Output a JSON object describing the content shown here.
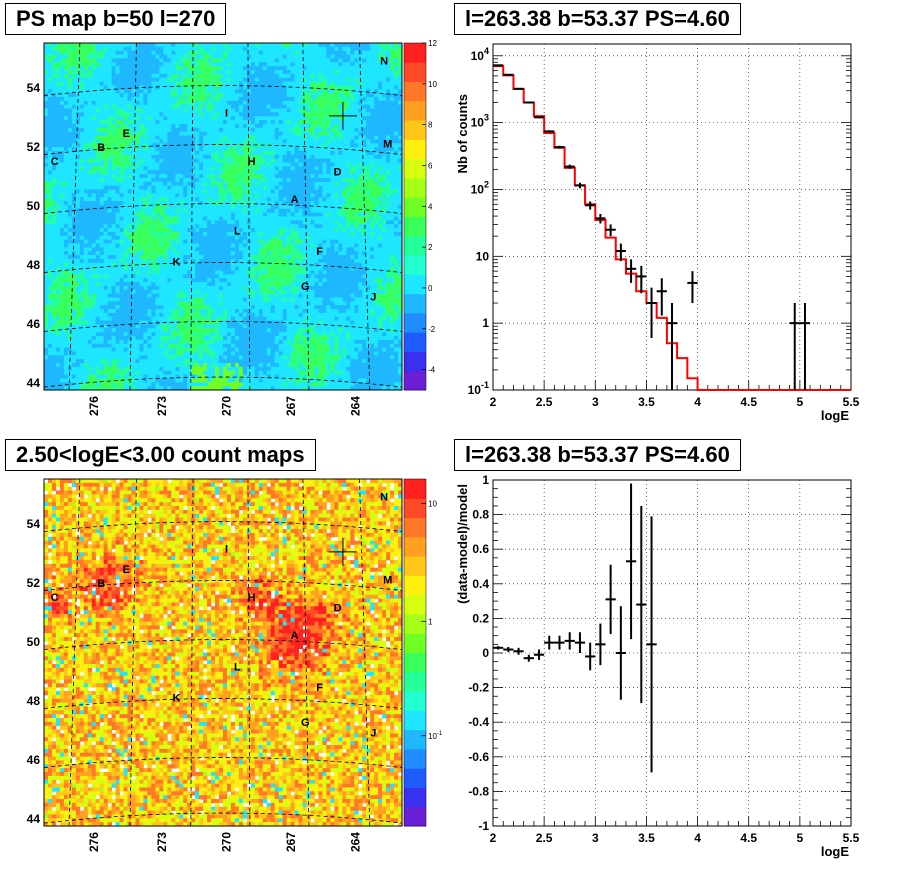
{
  "panels": {
    "ps_map": {
      "title": "PS map b=50 l=270"
    },
    "spectrum": {
      "title": "l=263.38 b=53.37 PS=4.60"
    },
    "count_map": {
      "title": "2.50<logE<3.00 count maps"
    },
    "residual": {
      "title": "l=263.38 b=53.37 PS=4.60"
    }
  },
  "colors": {
    "model_line": "#ff0000",
    "data_points": "#000000",
    "grid": "#000000"
  },
  "chart_data": [
    {
      "type": "heatmap",
      "title": "PS map b=50 l=270",
      "x_ticks": [
        "276",
        "273",
        "270",
        "267",
        "264"
      ],
      "y_ticks": [
        "54",
        "52",
        "50",
        "48",
        "46",
        "44"
      ],
      "palette_ticks": [
        "12",
        "10",
        "8",
        "6",
        "4",
        "2",
        "0",
        "-2",
        "-4"
      ],
      "palette_range": [
        -5,
        12
      ],
      "sources": [
        {
          "label": "N"
        },
        {
          "label": "I"
        },
        {
          "label": "E"
        },
        {
          "label": "M"
        },
        {
          "label": "B"
        },
        {
          "label": "C"
        },
        {
          "label": "H"
        },
        {
          "label": "D"
        },
        {
          "label": "A"
        },
        {
          "label": "L"
        },
        {
          "label": "F"
        },
        {
          "label": "K"
        },
        {
          "label": "G"
        },
        {
          "label": "J"
        }
      ]
    },
    {
      "type": "line",
      "title": "l=263.38 b=53.37 PS=4.60",
      "xlabel": "logE",
      "ylabel": "Nb of counts",
      "log_y": true,
      "grid": true,
      "xlim": [
        2,
        5.5
      ],
      "ylim": [
        0.1,
        15000
      ],
      "x_ticks": [
        "2",
        "2.5",
        "3",
        "3.5",
        "4",
        "4.5",
        "5",
        "5.5"
      ],
      "y_ticks": [
        "10^4",
        "10^3",
        "10^2",
        "10",
        "1",
        "10^-1"
      ],
      "series": [
        {
          "kind": "histogram",
          "bin_edges": [
            2.0,
            2.1,
            2.2,
            2.3,
            2.4,
            2.5,
            2.6,
            2.7,
            2.8,
            2.9,
            3.0,
            3.1,
            3.2,
            3.3,
            3.4,
            3.5,
            3.6,
            3.7,
            3.8,
            3.9,
            4.0,
            5.5
          ],
          "values": [
            7000,
            5100,
            3200,
            2000,
            1250,
            700,
            420,
            210,
            115,
            60,
            35,
            19,
            9,
            5.5,
            3,
            2,
            1.2,
            0.5,
            0.3,
            0.15,
            0.1
          ]
        },
        {
          "kind": "points",
          "x": [
            2.05,
            2.15,
            2.25,
            2.35,
            2.45,
            2.55,
            2.65,
            2.75,
            2.85,
            2.95,
            3.05,
            3.15,
            3.25,
            3.35,
            3.45,
            3.55,
            3.65,
            3.75,
            3.95,
            4.95,
            5.05
          ],
          "y": [
            7200,
            5200,
            3200,
            2000,
            1200,
            740,
            430,
            220,
            115,
            58,
            37,
            25,
            12,
            6.5,
            5,
            2,
            3,
            1,
            4,
            1,
            1
          ],
          "yerr": [
            85,
            72,
            57,
            45,
            35,
            27,
            21,
            15,
            11,
            8,
            6,
            5,
            3.5,
            2.5,
            2.2,
            1.4,
            1.7,
            1,
            2,
            1,
            1
          ]
        }
      ]
    },
    {
      "type": "heatmap",
      "title": "2.50<logE<3.00 count maps",
      "x_ticks": [
        "276",
        "273",
        "270",
        "267",
        "264"
      ],
      "y_ticks": [
        "54",
        "52",
        "50",
        "48",
        "46",
        "44"
      ],
      "palette_ticks": [
        "10",
        "1",
        "10^-1"
      ],
      "palette_log": true,
      "sources": [
        {
          "label": "N"
        },
        {
          "label": "I"
        },
        {
          "label": "E"
        },
        {
          "label": "M"
        },
        {
          "label": "B"
        },
        {
          "label": "C"
        },
        {
          "label": "H"
        },
        {
          "label": "D"
        },
        {
          "label": "A"
        },
        {
          "label": "L"
        },
        {
          "label": "F"
        },
        {
          "label": "K"
        },
        {
          "label": "G"
        },
        {
          "label": "J"
        }
      ]
    },
    {
      "type": "scatter",
      "title": "l=263.38 b=53.37 PS=4.60",
      "xlabel": "logE",
      "ylabel": "(data-model)/model",
      "grid": true,
      "xlim": [
        2,
        5.5
      ],
      "ylim": [
        -1,
        1
      ],
      "x_ticks": [
        "2",
        "2.5",
        "3",
        "3.5",
        "4",
        "4.5",
        "5",
        "5.5"
      ],
      "y_ticks": [
        "1",
        "0.8",
        "0.6",
        "0.4",
        "0.2",
        "0",
        "-0.2",
        "-0.4",
        "-0.6",
        "-0.8",
        "-1"
      ],
      "points": {
        "x": [
          2.05,
          2.15,
          2.25,
          2.35,
          2.45,
          2.55,
          2.65,
          2.75,
          2.85,
          2.95,
          3.05,
          3.15,
          3.25,
          3.35,
          3.45,
          3.55
        ],
        "y": [
          0.03,
          0.02,
          0.01,
          -0.03,
          -0.01,
          0.06,
          0.06,
          0.07,
          0.06,
          -0.02,
          0.05,
          0.31,
          0.0,
          0.53,
          0.28,
          0.05
        ],
        "yerr": [
          0.01,
          0.015,
          0.02,
          0.02,
          0.03,
          0.04,
          0.04,
          0.05,
          0.06,
          0.08,
          0.12,
          0.2,
          0.27,
          0.45,
          0.57,
          0.74
        ]
      }
    }
  ]
}
